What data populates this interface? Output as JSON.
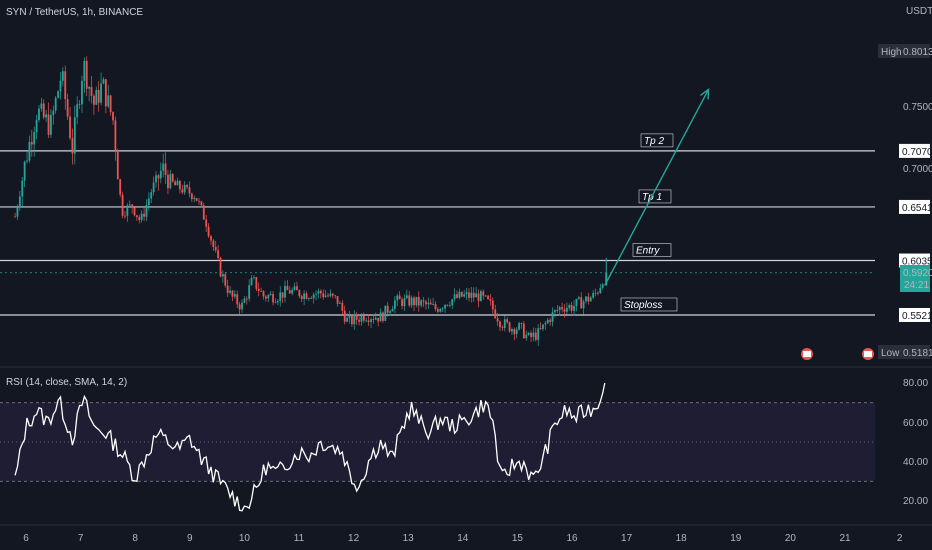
{
  "header": {
    "symbol_title": "SYN / TetherUS, 1h, BINANCE",
    "currency": "USDT"
  },
  "colors": {
    "background": "#131722",
    "up_candle": "#26a69a",
    "down_candle": "#ef5350",
    "level_line": "#d1d4dc",
    "arrow": "#26a69a",
    "rsi_line": "#ffffff",
    "rsi_band": "#1f1d33"
  },
  "price_scale": {
    "high_label": "High",
    "high_value": "0.8013",
    "low_label": "Low",
    "low_value": "0.5181",
    "ticks": [
      "0.7500",
      "0.7000"
    ],
    "current_price": "0.5920",
    "countdown": "24:21"
  },
  "levels": [
    {
      "name": "Tp 2",
      "price": 0.707,
      "price_label": "0.7070"
    },
    {
      "name": "Tp 1",
      "price": 0.6541,
      "price_label": "0.6541"
    },
    {
      "name": "Entry",
      "price": 0.6035,
      "price_label": "0.6035"
    },
    {
      "name": "Stoploss",
      "price": 0.5521,
      "price_label": "0.5521"
    }
  ],
  "rsi": {
    "title": "RSI (14, close, SMA, 14, 2)",
    "ticks": [
      "80.00",
      "60.00",
      "40.00",
      "20.00"
    ],
    "upper": 70,
    "lower": 30
  },
  "x_axis": {
    "ticks": [
      "6",
      "7",
      "8",
      "9",
      "10",
      "11",
      "12",
      "13",
      "14",
      "15",
      "16",
      "17",
      "18",
      "19",
      "20",
      "21",
      "2"
    ]
  },
  "chart_data": {
    "type": "candlestick",
    "x_unit": "day of month",
    "ylim": [
      0.51,
      0.81
    ],
    "price": [
      [
        5.8,
        0.645
      ],
      [
        6.0,
        0.7
      ],
      [
        6.2,
        0.745
      ],
      [
        6.45,
        0.73
      ],
      [
        6.65,
        0.78
      ],
      [
        6.85,
        0.71
      ],
      [
        7.05,
        0.79
      ],
      [
        7.25,
        0.75
      ],
      [
        7.4,
        0.77
      ],
      [
        7.6,
        0.735
      ],
      [
        7.75,
        0.65
      ],
      [
        7.95,
        0.655
      ],
      [
        8.1,
        0.64
      ],
      [
        8.3,
        0.67
      ],
      [
        8.5,
        0.69
      ],
      [
        8.7,
        0.675
      ],
      [
        8.9,
        0.67
      ],
      [
        9.1,
        0.665
      ],
      [
        9.3,
        0.64
      ],
      [
        9.55,
        0.595
      ],
      [
        9.75,
        0.57
      ],
      [
        9.95,
        0.56
      ],
      [
        10.15,
        0.585
      ],
      [
        10.35,
        0.57
      ],
      [
        10.6,
        0.57
      ],
      [
        10.8,
        0.575
      ],
      [
        11.1,
        0.572
      ],
      [
        11.4,
        0.573
      ],
      [
        11.7,
        0.566
      ],
      [
        11.9,
        0.545
      ],
      [
        12.2,
        0.552
      ],
      [
        12.5,
        0.55
      ],
      [
        12.75,
        0.565
      ],
      [
        13.05,
        0.565
      ],
      [
        13.3,
        0.562
      ],
      [
        13.5,
        0.558
      ],
      [
        13.75,
        0.566
      ],
      [
        14.0,
        0.57
      ],
      [
        14.3,
        0.57
      ],
      [
        14.5,
        0.562
      ],
      [
        14.7,
        0.545
      ],
      [
        14.9,
        0.54
      ],
      [
        15.05,
        0.54
      ],
      [
        15.2,
        0.53
      ],
      [
        15.4,
        0.535
      ],
      [
        15.6,
        0.55
      ],
      [
        15.8,
        0.56
      ],
      [
        16.0,
        0.56
      ],
      [
        16.2,
        0.565
      ],
      [
        16.4,
        0.57
      ],
      [
        16.5,
        0.578
      ],
      [
        16.6,
        0.592
      ]
    ],
    "projection": [
      [
        16.6,
        0.58
      ],
      [
        18.5,
        0.765
      ]
    ],
    "rsi": [
      [
        5.8,
        31
      ],
      [
        6.0,
        58
      ],
      [
        6.2,
        66
      ],
      [
        6.4,
        60
      ],
      [
        6.6,
        71
      ],
      [
        6.85,
        52
      ],
      [
        7.05,
        72
      ],
      [
        7.25,
        57
      ],
      [
        7.45,
        55
      ],
      [
        7.65,
        48
      ],
      [
        7.8,
        42
      ],
      [
        8.0,
        32
      ],
      [
        8.2,
        43
      ],
      [
        8.4,
        54
      ],
      [
        8.6,
        50
      ],
      [
        8.8,
        46
      ],
      [
        9.0,
        52
      ],
      [
        9.2,
        42
      ],
      [
        9.4,
        35
      ],
      [
        9.6,
        28
      ],
      [
        9.8,
        22
      ],
      [
        10.0,
        16
      ],
      [
        10.2,
        25
      ],
      [
        10.4,
        38
      ],
      [
        10.6,
        34
      ],
      [
        10.8,
        40
      ],
      [
        11.0,
        45
      ],
      [
        11.2,
        43
      ],
      [
        11.4,
        50
      ],
      [
        11.6,
        48
      ],
      [
        11.8,
        45
      ],
      [
        11.95,
        32
      ],
      [
        12.1,
        28
      ],
      [
        12.3,
        42
      ],
      [
        12.5,
        50
      ],
      [
        12.7,
        41
      ],
      [
        12.9,
        58
      ],
      [
        13.05,
        68
      ],
      [
        13.2,
        60
      ],
      [
        13.4,
        55
      ],
      [
        13.6,
        62
      ],
      [
        13.8,
        58
      ],
      [
        14.0,
        60
      ],
      [
        14.2,
        64
      ],
      [
        14.4,
        70
      ],
      [
        14.55,
        61
      ],
      [
        14.7,
        30
      ],
      [
        14.9,
        38
      ],
      [
        15.1,
        40
      ],
      [
        15.3,
        30
      ],
      [
        15.5,
        44
      ],
      [
        15.7,
        60
      ],
      [
        15.9,
        66
      ],
      [
        16.05,
        62
      ],
      [
        16.25,
        66
      ],
      [
        16.45,
        68
      ],
      [
        16.6,
        80
      ]
    ]
  }
}
